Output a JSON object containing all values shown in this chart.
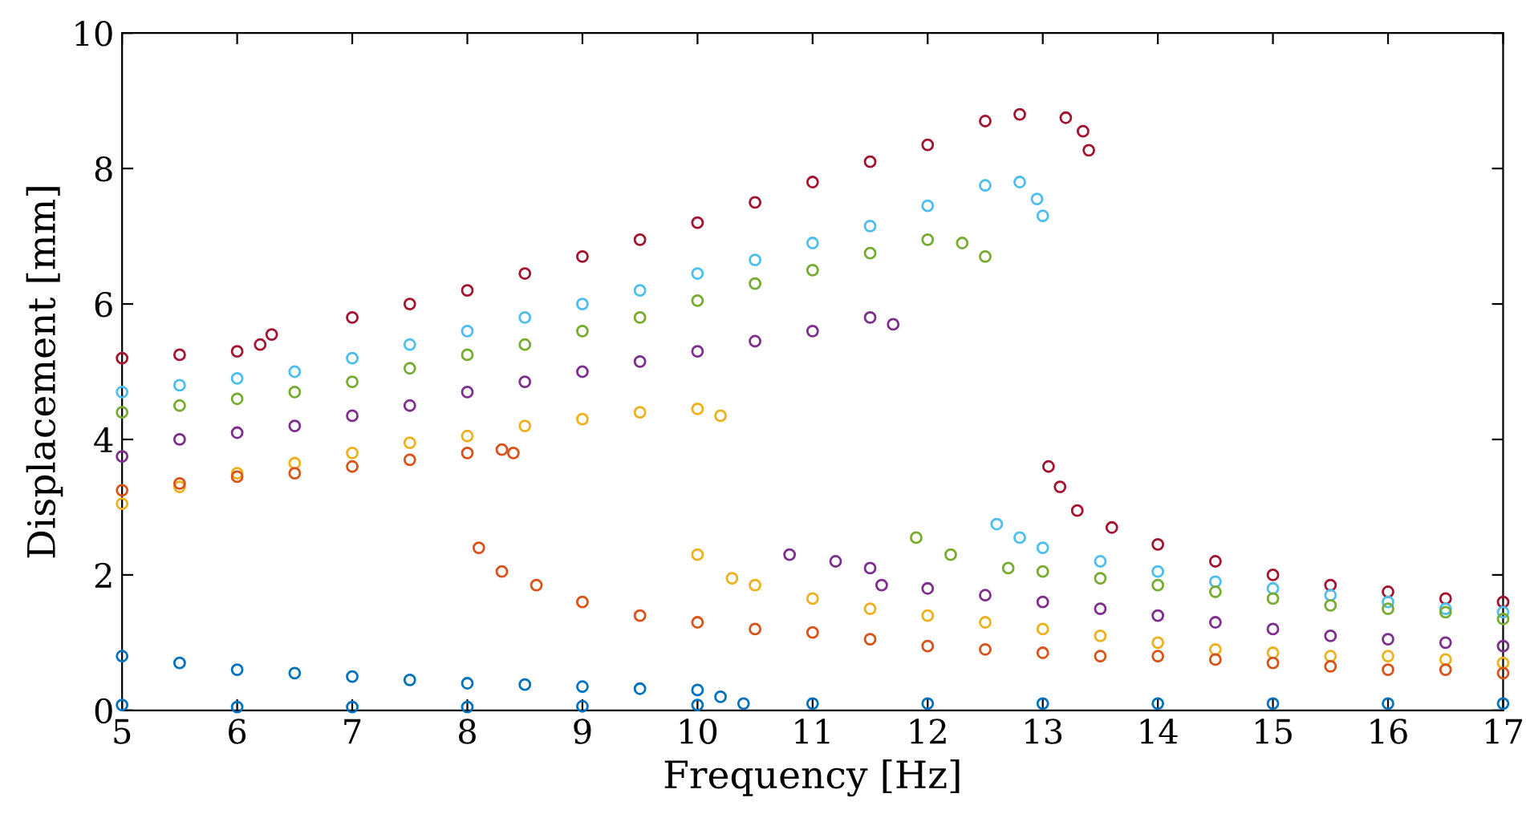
{
  "chart_data": {
    "type": "scatter",
    "xlabel": "Frequency [Hz]",
    "ylabel": "Displacement [mm]",
    "xlim": [
      5,
      17
    ],
    "ylim": [
      0,
      10
    ],
    "xticks": [
      5,
      6,
      7,
      8,
      9,
      10,
      11,
      12,
      13,
      14,
      15,
      16,
      17
    ],
    "yticks": [
      0,
      2,
      4,
      6,
      8,
      10
    ],
    "grid": false,
    "marker": "circle",
    "series": [
      {
        "color": "#a2142f",
        "x": [
          5,
          5.5,
          6,
          6.2,
          6.3,
          7,
          7.5,
          8,
          8.5,
          9,
          9.5,
          10,
          10.5,
          11,
          11.5,
          12,
          12.5,
          12.8,
          13.2,
          13.35,
          13.4
        ],
        "values": [
          5.2,
          5.25,
          5.3,
          5.4,
          5.55,
          5.8,
          6.0,
          6.2,
          6.45,
          6.7,
          6.95,
          7.2,
          7.5,
          7.8,
          8.1,
          8.35,
          8.7,
          8.8,
          8.75,
          8.55,
          8.27
        ]
      },
      {
        "color": "#a2142f",
        "x": [
          13.05,
          13.15,
          13.3,
          13.6,
          14,
          14.5,
          15,
          15.5,
          16,
          16.5,
          17
        ],
        "values": [
          3.6,
          3.3,
          2.95,
          2.7,
          2.45,
          2.2,
          2.0,
          1.85,
          1.75,
          1.65,
          1.6
        ]
      },
      {
        "color": "#4dbeee",
        "x": [
          5,
          5.5,
          6,
          6.5,
          7,
          7.5,
          8,
          8.5,
          9,
          9.5,
          10,
          10.5,
          11,
          11.5,
          12,
          12.5,
          12.8,
          12.95,
          13
        ],
        "values": [
          4.7,
          4.8,
          4.9,
          5.0,
          5.2,
          5.4,
          5.6,
          5.8,
          6.0,
          6.2,
          6.45,
          6.65,
          6.9,
          7.15,
          7.45,
          7.75,
          7.8,
          7.55,
          7.3
        ]
      },
      {
        "color": "#4dbeee",
        "x": [
          12.6,
          12.8,
          13,
          13.5,
          14,
          14.5,
          15,
          15.5,
          16,
          16.5,
          17
        ],
        "values": [
          2.75,
          2.55,
          2.4,
          2.2,
          2.05,
          1.9,
          1.8,
          1.7,
          1.6,
          1.5,
          1.45
        ]
      },
      {
        "color": "#77ac30",
        "x": [
          5,
          5.5,
          6,
          6.5,
          7,
          7.5,
          8,
          8.5,
          9,
          9.5,
          10,
          10.5,
          11,
          11.5,
          12,
          12.3,
          12.5
        ],
        "values": [
          4.4,
          4.5,
          4.6,
          4.7,
          4.85,
          5.05,
          5.25,
          5.4,
          5.6,
          5.8,
          6.05,
          6.3,
          6.5,
          6.75,
          6.95,
          6.9,
          6.7
        ]
      },
      {
        "color": "#77ac30",
        "x": [
          11.9,
          12.2,
          12.7,
          13,
          13.5,
          14,
          14.5,
          15,
          15.5,
          16,
          16.5,
          17
        ],
        "values": [
          2.55,
          2.3,
          2.1,
          2.05,
          1.95,
          1.85,
          1.75,
          1.65,
          1.55,
          1.5,
          1.45,
          1.35
        ]
      },
      {
        "color": "#7e2f8e",
        "x": [
          5,
          5.5,
          6,
          6.5,
          7,
          7.5,
          8,
          8.5,
          9,
          9.5,
          10,
          10.5,
          11,
          11.5,
          11.7
        ],
        "values": [
          3.75,
          4.0,
          4.1,
          4.2,
          4.35,
          4.5,
          4.7,
          4.85,
          5.0,
          5.15,
          5.3,
          5.45,
          5.6,
          5.8,
          5.7
        ]
      },
      {
        "color": "#7e2f8e",
        "x": [
          10.8,
          11.2,
          11.5,
          11.6,
          12,
          12.5,
          13,
          13.5,
          14,
          14.5,
          15,
          15.5,
          16,
          16.5,
          17
        ],
        "values": [
          2.3,
          2.2,
          2.1,
          1.85,
          1.8,
          1.7,
          1.6,
          1.5,
          1.4,
          1.3,
          1.2,
          1.1,
          1.05,
          1.0,
          0.95
        ]
      },
      {
        "color": "#edb120",
        "x": [
          5,
          5.5,
          6,
          6.5,
          7,
          7.5,
          8,
          8.5,
          9,
          9.5,
          10,
          10.2
        ],
        "values": [
          3.05,
          3.3,
          3.5,
          3.65,
          3.8,
          3.95,
          4.05,
          4.2,
          4.3,
          4.4,
          4.45,
          4.35
        ]
      },
      {
        "color": "#edb120",
        "x": [
          10,
          10.3,
          10.5,
          11,
          11.5,
          12,
          12.5,
          13,
          13.5,
          14,
          14.5,
          15,
          15.5,
          16,
          16.5,
          17
        ],
        "values": [
          2.3,
          1.95,
          1.85,
          1.65,
          1.5,
          1.4,
          1.3,
          1.2,
          1.1,
          1.0,
          0.9,
          0.85,
          0.8,
          0.8,
          0.75,
          0.7
        ]
      },
      {
        "color": "#d95319",
        "x": [
          5,
          5.5,
          6,
          6.5,
          7,
          7.5,
          8,
          8.3,
          8.4
        ],
        "values": [
          3.25,
          3.35,
          3.45,
          3.5,
          3.6,
          3.7,
          3.8,
          3.85,
          3.8
        ]
      },
      {
        "color": "#d95319",
        "x": [
          8.1,
          8.3,
          8.6,
          9,
          9.5,
          10,
          10.5,
          11,
          11.5,
          12,
          12.5,
          13,
          13.5,
          14,
          14.5,
          15,
          15.5,
          16,
          16.5,
          17
        ],
        "values": [
          2.4,
          2.05,
          1.85,
          1.6,
          1.4,
          1.3,
          1.2,
          1.15,
          1.05,
          0.95,
          0.9,
          0.85,
          0.8,
          0.8,
          0.75,
          0.7,
          0.65,
          0.6,
          0.6,
          0.55
        ]
      },
      {
        "color": "#0072bd",
        "x": [
          5,
          5.5,
          6,
          6.5,
          7,
          7.5,
          8,
          8.5,
          9,
          9.5,
          10,
          10.2,
          10.4
        ],
        "values": [
          0.8,
          0.7,
          0.6,
          0.55,
          0.5,
          0.45,
          0.4,
          0.38,
          0.35,
          0.32,
          0.3,
          0.2,
          0.1
        ]
      },
      {
        "color": "#0072bd",
        "x": [
          5,
          6,
          7,
          8,
          9,
          10,
          11,
          12,
          13,
          14,
          15,
          16,
          17
        ],
        "values": [
          0.08,
          0.05,
          0.05,
          0.05,
          0.06,
          0.08,
          0.1,
          0.1,
          0.1,
          0.1,
          0.1,
          0.1,
          0.1
        ]
      }
    ]
  }
}
